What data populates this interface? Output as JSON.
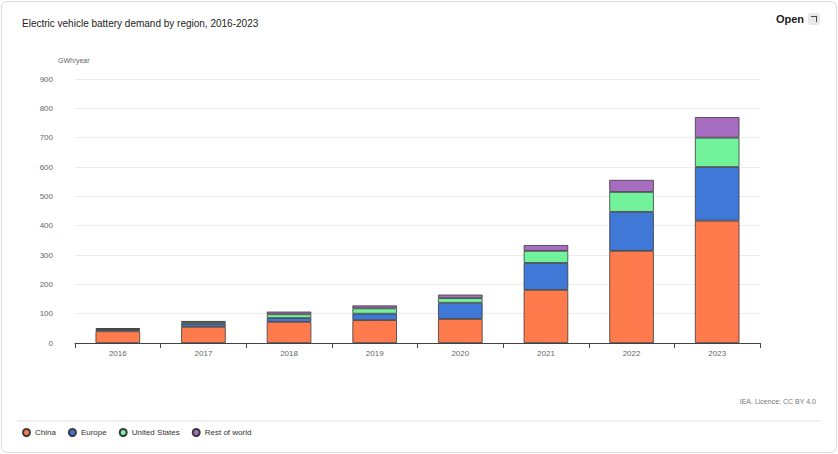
{
  "chart_data": {
    "type": "bar",
    "title": "Electric vehicle battery demand by region, 2016-2023",
    "ylabel": "GWh/year",
    "source": "IEA. Licence: CC BY 4.0",
    "button": "Open",
    "categories": [
      "2016",
      "2017",
      "2018",
      "2019",
      "2020",
      "2021",
      "2022",
      "2023"
    ],
    "series": [
      {
        "name": "China",
        "color": "#ff7b4d",
        "values": [
          40,
          55,
          72,
          78,
          82,
          181,
          314,
          417
        ]
      },
      {
        "name": "Europe",
        "color": "#3f78d6",
        "values": [
          5,
          10,
          13,
          22,
          55,
          92,
          133,
          183
        ]
      },
      {
        "name": "United States",
        "color": "#72f29b",
        "values": [
          3,
          6,
          13,
          18,
          16,
          41,
          68,
          100
        ]
      },
      {
        "name": "Rest of world",
        "color": "#a66dc0",
        "values": [
          2,
          4,
          9,
          10,
          12,
          20,
          41,
          70
        ]
      }
    ],
    "ylim": [
      0,
      900
    ],
    "yticks": [
      0,
      100,
      200,
      300,
      400,
      500,
      600,
      700,
      800,
      900
    ],
    "stacked": true,
    "grid": true,
    "legend": "bottom-left"
  }
}
